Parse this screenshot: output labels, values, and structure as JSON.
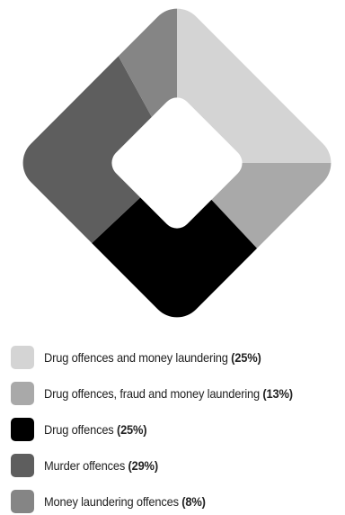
{
  "chart_data": {
    "type": "pie",
    "title": "",
    "series": [
      {
        "label": "Drug offences and money laundering",
        "pct_label": "(25%)",
        "value": 25,
        "color": "#d4d4d4"
      },
      {
        "label": "Drug offences, fraud and money laundering",
        "pct_label": "(13%)",
        "value": 13,
        "color": "#a9a9a9"
      },
      {
        "label": "Drug offences",
        "pct_label": "(25%)",
        "value": 25,
        "color": "#000000"
      },
      {
        "label": "Murder offences",
        "pct_label": "(29%)",
        "value": 29,
        "color": "#5e5e5e"
      },
      {
        "label": "Money laundering offences",
        "pct_label": "(8%)",
        "value": 8,
        "color": "#858585"
      }
    ],
    "shape": "rounded-square-donut",
    "start_angle_deg": 0,
    "direction": "clockwise",
    "legend_position": "bottom"
  }
}
